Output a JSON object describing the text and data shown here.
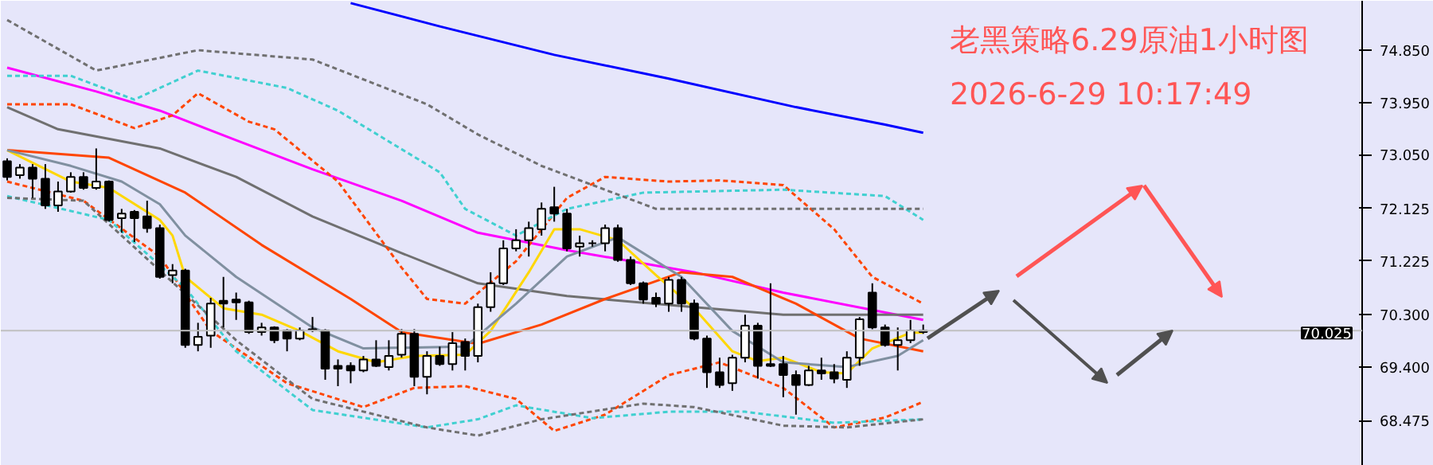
{
  "chart_data": {
    "type": "candlestick",
    "title": "老黑策略6.29原油1小时图",
    "subtitle": "2026-6-29 10:17:49",
    "categories": [
      null,
      null,
      null,
      null,
      null,
      null,
      null,
      null,
      null,
      null,
      null,
      null,
      null,
      null,
      null,
      null,
      null,
      null,
      null,
      null,
      null,
      null,
      null,
      null,
      null,
      null,
      null,
      null,
      null,
      null,
      null,
      null,
      null,
      null,
      null,
      null,
      null,
      null,
      null,
      null,
      null,
      null,
      null,
      null,
      null,
      null,
      null,
      null,
      null,
      null,
      null,
      null,
      null,
      null,
      null,
      null,
      null,
      null,
      null,
      null,
      null,
      null,
      null,
      null,
      null,
      null,
      null,
      null,
      null,
      null,
      null,
      null,
      null,
      null,
      null,
      null,
      null,
      null,
      null,
      null,
      null,
      null,
      null,
      null,
      null,
      null,
      null,
      null,
      null,
      null,
      null,
      null,
      null,
      null,
      null,
      null,
      null,
      null,
      null,
      null,
      null,
      null,
      null,
      null,
      null,
      null,
      null
    ],
    "ohlc": [
      [
        72.94,
        72.99,
        72.61,
        72.67
      ],
      [
        72.7,
        72.89,
        72.64,
        72.83
      ],
      [
        72.83,
        72.89,
        72.31,
        72.64
      ],
      [
        72.64,
        72.89,
        72.12,
        72.18
      ],
      [
        72.18,
        72.59,
        72.07,
        72.42
      ],
      [
        72.42,
        72.75,
        72.4,
        72.67
      ],
      [
        72.67,
        72.75,
        72.45,
        72.48
      ],
      [
        72.48,
        73.16,
        72.45,
        72.59
      ],
      [
        72.59,
        72.61,
        71.9,
        71.93
      ],
      [
        71.96,
        72.12,
        71.71,
        72.04
      ],
      [
        72.07,
        72.1,
        71.55,
        71.96
      ],
      [
        71.99,
        72.26,
        71.71,
        71.79
      ],
      [
        71.79,
        71.85,
        70.92,
        70.95
      ],
      [
        70.98,
        71.17,
        70.84,
        71.06
      ],
      [
        71.06,
        71.09,
        69.73,
        69.78
      ],
      [
        69.78,
        70.16,
        69.67,
        69.92
      ],
      [
        69.94,
        70.59,
        69.73,
        70.49
      ],
      [
        70.54,
        70.95,
        70.08,
        70.49
      ],
      [
        70.56,
        70.68,
        70.21,
        70.51
      ],
      [
        70.51,
        70.54,
        69.97,
        70.0
      ],
      [
        70.0,
        70.16,
        69.94,
        70.08
      ],
      [
        70.08,
        70.1,
        69.81,
        69.86
      ],
      [
        70.03,
        70.05,
        69.67,
        69.89
      ],
      [
        69.89,
        70.08,
        69.86,
        70.03
      ],
      [
        70.05,
        70.26,
        70.0,
        70.03
      ],
      [
        70.03,
        70.05,
        69.18,
        69.37
      ],
      [
        69.42,
        69.53,
        69.07,
        69.37
      ],
      [
        69.42,
        69.48,
        69.12,
        69.34
      ],
      [
        69.34,
        69.59,
        69.31,
        69.53
      ],
      [
        69.53,
        69.86,
        69.4,
        69.42
      ],
      [
        69.4,
        69.86,
        69.34,
        69.59
      ],
      [
        69.61,
        70.05,
        69.56,
        69.97
      ],
      [
        69.97,
        70.05,
        69.07,
        69.23
      ],
      [
        69.23,
        69.67,
        68.93,
        69.59
      ],
      [
        69.59,
        69.75,
        69.42,
        69.45
      ],
      [
        69.45,
        70.0,
        69.34,
        69.81
      ],
      [
        69.83,
        69.89,
        69.34,
        69.59
      ],
      [
        69.59,
        70.49,
        69.48,
        70.43
      ],
      [
        70.43,
        71.03,
        70.35,
        70.84
      ],
      [
        70.84,
        71.58,
        70.81,
        71.44
      ],
      [
        71.44,
        71.77,
        71.39,
        71.58
      ],
      [
        71.58,
        71.9,
        71.3,
        71.79
      ],
      [
        71.77,
        72.23,
        71.66,
        72.12
      ],
      [
        72.15,
        72.5,
        71.9,
        72.04
      ],
      [
        72.04,
        72.12,
        71.39,
        71.44
      ],
      [
        71.47,
        71.66,
        71.3,
        71.53
      ],
      [
        71.53,
        71.58,
        71.47,
        71.53
      ],
      [
        71.53,
        71.85,
        71.39,
        71.79
      ],
      [
        71.79,
        71.85,
        71.21,
        71.24
      ],
      [
        71.24,
        71.3,
        70.81,
        70.84
      ],
      [
        70.84,
        70.87,
        70.49,
        70.56
      ],
      [
        70.59,
        70.68,
        70.43,
        70.49
      ],
      [
        70.49,
        70.95,
        70.35,
        70.9
      ],
      [
        70.9,
        70.95,
        70.35,
        70.49
      ],
      [
        70.49,
        70.56,
        69.86,
        69.89
      ],
      [
        69.89,
        69.94,
        69.04,
        69.31
      ],
      [
        69.31,
        69.56,
        69.04,
        69.09
      ],
      [
        69.12,
        69.61,
        68.99,
        69.56
      ],
      [
        69.56,
        70.3,
        69.48,
        70.11
      ],
      [
        70.11,
        70.16,
        69.2,
        69.42
      ],
      [
        69.45,
        70.84,
        69.4,
        69.42
      ],
      [
        69.45,
        69.59,
        68.88,
        69.26
      ],
      [
        69.26,
        69.34,
        68.58,
        69.09
      ],
      [
        69.09,
        69.42,
        69.07,
        69.34
      ],
      [
        69.34,
        69.56,
        69.18,
        69.29
      ],
      [
        69.31,
        69.45,
        69.12,
        69.2
      ],
      [
        69.18,
        69.67,
        69.04,
        69.56
      ],
      [
        69.56,
        70.26,
        69.42,
        70.22
      ],
      [
        70.68,
        70.84,
        70.05,
        70.08
      ],
      [
        70.08,
        70.13,
        69.75,
        69.78
      ],
      [
        69.78,
        70.08,
        69.34,
        69.86
      ],
      [
        69.86,
        70.21,
        69.81,
        70.03
      ],
      [
        70.0,
        70.13,
        69.97,
        70.025
      ],
      null,
      null,
      null,
      null,
      null,
      null,
      null,
      null,
      null,
      null,
      null,
      null,
      null,
      null,
      null,
      null,
      null,
      null,
      null,
      null,
      null,
      null,
      null,
      null,
      null,
      null,
      null,
      null,
      null,
      null,
      null,
      null,
      null,
      null
    ],
    "series": [
      {
        "type": "line",
        "color": "#0000ff",
        "line_style": "solid",
        "values": [
          null,
          null,
          null,
          null,
          null,
          null,
          null,
          null,
          null,
          null,
          null,
          null,
          null,
          null,
          null,
          null,
          null,
          null,
          null,
          null,
          null,
          null,
          null,
          null,
          null,
          null,
          null,
          75.66,
          null,
          null,
          null,
          null,
          null,
          null,
          75.26,
          null,
          null,
          null,
          null,
          null,
          null,
          null,
          null,
          74.77,
          null,
          null,
          null,
          null,
          null,
          null,
          null,
          null,
          74.36,
          null,
          null,
          null,
          null,
          null,
          null,
          null,
          null,
          null,
          73.87,
          null,
          null,
          null,
          null,
          null,
          null,
          73.57,
          null,
          null,
          73.43,
          null,
          null,
          null,
          null,
          null,
          null,
          null,
          null,
          null,
          null,
          null,
          null,
          null,
          null,
          null,
          null,
          null,
          null,
          null,
          null,
          null,
          null,
          null,
          null,
          null,
          null,
          null,
          null,
          null,
          null,
          null,
          null,
          null,
          null
        ]
      },
      {
        "type": "line",
        "color": "#ff00ff",
        "line_style": "solid",
        "values": [
          74.55,
          null,
          null,
          null,
          null,
          null,
          null,
          74.14,
          null,
          null,
          null,
          null,
          73.81,
          null,
          null,
          null,
          null,
          null,
          73.3,
          null,
          null,
          null,
          null,
          null,
          72.8,
          null,
          null,
          null,
          null,
          null,
          null,
          72.26,
          null,
          null,
          null,
          null,
          null,
          71.71,
          null,
          null,
          null,
          null,
          null,
          null,
          71.41,
          null,
          null,
          null,
          null,
          null,
          null,
          null,
          null,
          null,
          71.03,
          null,
          null,
          null,
          null,
          null,
          null,
          70.68,
          null,
          null,
          null,
          null,
          null,
          null,
          null,
          null,
          null,
          null,
          70.21,
          null,
          null,
          null,
          null,
          null,
          null,
          null,
          null,
          null,
          null,
          null,
          null,
          null,
          null,
          null,
          null,
          null,
          null,
          null,
          null,
          null,
          null,
          null,
          null,
          null,
          null,
          null,
          null,
          null,
          null,
          null,
          null,
          null,
          null
        ]
      },
      {
        "type": "line",
        "color": "#707070",
        "line_style": "solid",
        "values": [
          73.87,
          null,
          null,
          null,
          73.49,
          null,
          null,
          null,
          null,
          null,
          null,
          null,
          73.16,
          null,
          null,
          null,
          null,
          null,
          72.67,
          null,
          null,
          null,
          null,
          null,
          71.99,
          null,
          null,
          null,
          null,
          null,
          null,
          71.36,
          null,
          null,
          null,
          null,
          null,
          70.84,
          null,
          null,
          null,
          null,
          null,
          null,
          70.62,
          null,
          null,
          null,
          null,
          null,
          null,
          null,
          null,
          null,
          70.43,
          null,
          null,
          null,
          null,
          null,
          null,
          70.3,
          null,
          null,
          null,
          null,
          null,
          null,
          null,
          null,
          null,
          null,
          70.3,
          null,
          null,
          null,
          null,
          null,
          null,
          null,
          null,
          null,
          null,
          null,
          null,
          null,
          null,
          null,
          null,
          null,
          null,
          null,
          null,
          null,
          null,
          null,
          null,
          null,
          null,
          null,
          null,
          null,
          null,
          null,
          null,
          null,
          null
        ]
      },
      {
        "type": "line",
        "color": "#ff4500",
        "line_style": "solid",
        "values": [
          73.13,
          null,
          null,
          null,
          null,
          null,
          null,
          null,
          73.0,
          null,
          null,
          null,
          null,
          null,
          72.4,
          null,
          null,
          null,
          null,
          null,
          71.5,
          null,
          null,
          null,
          null,
          null,
          null,
          70.57,
          null,
          null,
          null,
          70.0,
          null,
          null,
          null,
          null,
          null,
          69.8,
          null,
          null,
          null,
          null,
          70.13,
          null,
          null,
          null,
          null,
          70.57,
          null,
          null,
          null,
          null,
          null,
          71.03,
          null,
          null,
          null,
          70.95,
          null,
          null,
          null,
          null,
          70.49,
          null,
          null,
          null,
          null,
          69.89,
          null,
          null,
          null,
          null,
          69.67,
          null,
          null,
          null,
          null,
          null,
          null,
          null,
          null,
          null,
          null,
          null,
          null,
          null,
          null,
          null,
          null,
          null,
          null,
          null,
          null,
          null,
          null,
          null,
          null,
          null,
          null,
          null,
          null,
          null,
          null,
          null,
          null,
          null,
          null
        ]
      },
      {
        "type": "line",
        "color": "#ffd700",
        "line_style": "solid",
        "values": [
          73.13,
          null,
          null,
          null,
          null,
          72.59,
          null,
          null,
          72.48,
          null,
          null,
          null,
          71.93,
          71.66,
          70.95,
          null,
          null,
          70.41,
          null,
          null,
          70.3,
          null,
          null,
          70.02,
          null,
          null,
          69.67,
          null,
          null,
          69.48,
          null,
          null,
          69.59,
          null,
          null,
          null,
          69.61,
          null,
          70.02,
          null,
          null,
          71.03,
          null,
          71.77,
          null,
          71.77,
          null,
          null,
          71.58,
          null,
          null,
          70.98,
          null,
          null,
          70.41,
          null,
          null,
          69.67,
          null,
          69.5,
          null,
          69.56,
          null,
          null,
          69.31,
          null,
          69.29,
          null,
          69.72,
          null,
          null,
          69.99,
          69.99,
          null,
          null,
          null,
          null,
          null,
          null,
          null,
          null,
          null,
          null,
          null,
          null,
          null,
          null,
          null,
          null,
          null,
          null,
          null,
          null,
          null,
          null,
          null,
          null,
          null,
          null,
          null,
          null,
          null,
          null,
          null,
          null,
          null,
          null
        ]
      },
      {
        "type": "line",
        "color": "#8090a0",
        "line_style": "solid",
        "values": [
          73.13,
          null,
          null,
          null,
          null,
          72.86,
          null,
          null,
          null,
          72.59,
          null,
          null,
          72.2,
          null,
          71.66,
          null,
          null,
          null,
          70.95,
          null,
          null,
          null,
          null,
          null,
          70.08,
          null,
          null,
          null,
          69.72,
          null,
          null,
          null,
          null,
          null,
          null,
          null,
          69.75,
          null,
          null,
          null,
          70.49,
          null,
          null,
          null,
          71.3,
          null,
          null,
          null,
          71.63,
          null,
          null,
          null,
          null,
          70.95,
          null,
          null,
          null,
          70.02,
          null,
          null,
          null,
          69.48,
          null,
          null,
          null,
          null,
          69.4,
          null,
          null,
          null,
          69.59,
          null,
          69.86,
          null,
          null,
          null,
          null,
          null,
          null,
          null,
          null,
          null,
          null,
          null,
          null,
          null,
          null,
          null,
          null,
          null,
          null,
          null,
          null,
          null,
          null,
          null,
          null,
          null,
          null,
          null,
          null,
          null,
          null,
          null,
          null,
          null,
          null
        ]
      },
      {
        "type": "line",
        "color": "#ff4500",
        "line_style": "dashed",
        "values": [
          73.92,
          null,
          null,
          null,
          null,
          73.92,
          null,
          null,
          null,
          null,
          73.51,
          null,
          null,
          73.73,
          null,
          74.11,
          null,
          null,
          null,
          73.62,
          null,
          73.49,
          null,
          null,
          null,
          null,
          72.59,
          null,
          null,
          null,
          null,
          71.11,
          null,
          70.57,
          null,
          null,
          70.49,
          null,
          null,
          null,
          71.22,
          null,
          null,
          null,
          72.31,
          null,
          null,
          72.67,
          null,
          null,
          null,
          null,
          72.59,
          null,
          null,
          null,
          72.61,
          null,
          null,
          null,
          null,
          72.53,
          null,
          null,
          null,
          71.77,
          null,
          null,
          70.95,
          null,
          null,
          null,
          70.49,
          null,
          null,
          null,
          null,
          null,
          null,
          null,
          null,
          null,
          null,
          null,
          null,
          null,
          null,
          null,
          null,
          null,
          null,
          null,
          null,
          null,
          null,
          null,
          null,
          null,
          null,
          null,
          null,
          null,
          null,
          null,
          null,
          null,
          null
        ]
      },
      {
        "type": "line",
        "color": "#ff4500",
        "line_style": "dashed",
        "values": [
          72.59,
          null,
          null,
          null,
          null,
          null,
          72.26,
          null,
          null,
          null,
          null,
          null,
          71.3,
          null,
          null,
          null,
          70.02,
          null,
          null,
          null,
          null,
          null,
          69.12,
          null,
          null,
          null,
          null,
          null,
          68.71,
          null,
          null,
          null,
          69.04,
          null,
          null,
          null,
          69.07,
          null,
          null,
          null,
          68.85,
          null,
          null,
          68.3,
          null,
          null,
          null,
          68.58,
          null,
          null,
          null,
          null,
          69.26,
          null,
          null,
          null,
          69.48,
          null,
          null,
          null,
          null,
          69.04,
          null,
          null,
          null,
          68.36,
          null,
          null,
          null,
          68.53,
          null,
          null,
          68.8,
          null,
          null,
          null,
          null,
          null,
          null,
          null,
          null,
          null,
          null,
          null,
          null,
          null,
          null,
          null,
          null,
          null,
          null,
          null,
          null,
          null,
          null,
          null,
          null,
          null,
          null,
          null,
          null,
          null,
          null,
          null,
          null,
          null,
          null
        ]
      },
      {
        "type": "line",
        "color": "#40d0d0",
        "line_style": "dashed",
        "values": [
          74.41,
          null,
          null,
          null,
          null,
          74.41,
          null,
          null,
          null,
          null,
          74.0,
          null,
          null,
          null,
          null,
          74.5,
          null,
          null,
          null,
          null,
          null,
          null,
          74.2,
          null,
          null,
          null,
          73.81,
          null,
          null,
          null,
          null,
          null,
          null,
          null,
          72.75,
          null,
          72.12,
          null,
          null,
          null,
          71.66,
          null,
          null,
          null,
          72.12,
          null,
          null,
          null,
          null,
          null,
          72.4,
          null,
          null,
          null,
          null,
          null,
          null,
          null,
          null,
          null,
          null,
          72.45,
          null,
          null,
          null,
          null,
          null,
          null,
          null,
          72.34,
          null,
          null,
          71.93,
          null,
          null,
          null,
          null,
          null,
          null,
          null,
          null,
          null,
          null,
          null,
          null,
          null,
          null,
          null,
          null,
          null,
          null,
          null,
          null,
          null,
          null,
          null,
          null,
          null,
          null,
          null,
          null,
          null,
          null,
          null,
          null,
          null,
          null
        ]
      },
      {
        "type": "line",
        "color": "#40d0d0",
        "line_style": "dashed",
        "values": [
          72.34,
          null,
          null,
          null,
          null,
          null,
          null,
          null,
          71.93,
          null,
          null,
          null,
          null,
          null,
          70.76,
          null,
          null,
          null,
          69.67,
          null,
          null,
          null,
          null,
          null,
          68.66,
          null,
          null,
          null,
          null,
          null,
          null,
          null,
          null,
          68.36,
          null,
          null,
          null,
          68.5,
          null,
          null,
          68.74,
          null,
          null,
          null,
          null,
          null,
          68.52,
          null,
          null,
          null,
          null,
          null,
          68.63,
          null,
          null,
          null,
          null,
          null,
          68.63,
          null,
          null,
          null,
          null,
          null,
          null,
          68.44,
          null,
          null,
          null,
          null,
          null,
          null,
          68.5,
          null,
          null,
          null,
          null,
          null,
          null,
          null,
          null,
          null,
          null,
          null,
          null,
          null,
          null,
          null,
          null,
          null,
          null,
          null,
          null,
          null,
          null,
          null,
          null,
          null,
          null,
          null,
          null,
          null,
          null,
          null,
          null,
          null,
          null
        ]
      },
      {
        "type": "line",
        "color": "#707070",
        "line_style": "dashed",
        "values": [
          75.37,
          null,
          null,
          null,
          null,
          null,
          null,
          74.5,
          null,
          null,
          null,
          null,
          null,
          null,
          null,
          74.85,
          null,
          null,
          null,
          null,
          null,
          null,
          null,
          null,
          74.69,
          null,
          null,
          null,
          null,
          null,
          null,
          null,
          null,
          73.92,
          null,
          null,
          null,
          73.4,
          null,
          null,
          null,
          null,
          72.86,
          null,
          null,
          null,
          null,
          null,
          null,
          null,
          null,
          72.12,
          null,
          null,
          null,
          null,
          null,
          null,
          null,
          null,
          null,
          null,
          null,
          null,
          null,
          null,
          null,
          null,
          null,
          null,
          null,
          null,
          72.12,
          null,
          null,
          null,
          null,
          null,
          null,
          null,
          null,
          null,
          null,
          null,
          null,
          null,
          null,
          null,
          null,
          null,
          null,
          null,
          null,
          null,
          null,
          null,
          null,
          null,
          null,
          null,
          null,
          null,
          null,
          null,
          null,
          null,
          null
        ]
      },
      {
        "type": "line",
        "color": "#707070",
        "line_style": "dashed",
        "values": [
          72.31,
          null,
          null,
          null,
          null,
          null,
          72.26,
          null,
          null,
          null,
          null,
          null,
          null,
          null,
          null,
          null,
          null,
          null,
          69.86,
          null,
          null,
          null,
          null,
          null,
          68.85,
          null,
          null,
          null,
          null,
          null,
          null,
          null,
          null,
          68.36,
          null,
          null,
          null,
          68.22,
          null,
          null,
          null,
          null,
          68.5,
          null,
          null,
          null,
          null,
          null,
          null,
          null,
          68.77,
          null,
          null,
          null,
          68.71,
          null,
          null,
          null,
          null,
          null,
          null,
          68.39,
          null,
          null,
          null,
          null,
          68.36,
          null,
          null,
          null,
          null,
          null,
          68.5,
          null,
          null,
          null,
          null,
          null,
          null,
          null,
          null,
          null,
          null,
          null,
          null,
          null,
          null,
          null,
          null,
          null,
          null,
          null,
          null,
          null,
          null,
          null,
          null,
          null,
          null,
          null,
          null,
          null,
          null,
          null,
          null,
          null,
          null
        ]
      }
    ],
    "ylim": [
      67.7,
      75.7
    ],
    "yticks": [
      {
        "value": 74.85,
        "label": "74.850"
      },
      {
        "value": 73.95,
        "label": "73.950"
      },
      {
        "value": 73.05,
        "label": "73.050"
      },
      {
        "value": 72.125,
        "label": "72.125"
      },
      {
        "value": 71.225,
        "label": "71.225"
      },
      {
        "value": 70.3,
        "label": "70.300"
      },
      {
        "value": 69.4,
        "label": "69.400"
      },
      {
        "value": 68.475,
        "label": "68.475"
      }
    ],
    "ref_lines": [
      {
        "axis": "y",
        "value": 70.025,
        "label": "70.025",
        "color": "#c0c0c0"
      }
    ],
    "tick_labels": "y",
    "grid": false
  }
}
